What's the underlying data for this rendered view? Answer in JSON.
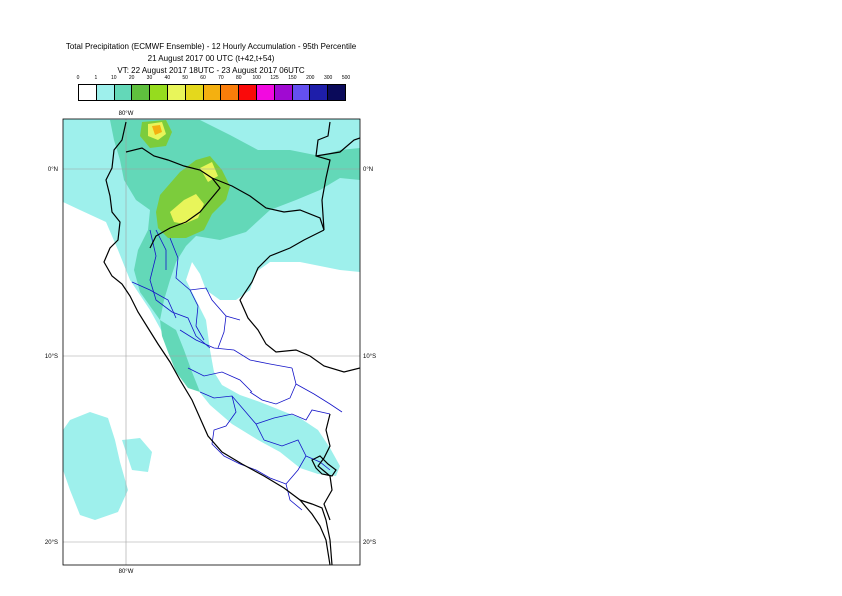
{
  "title": {
    "line1": "Total Precipitation (ECMWF Ensemble) - 12 Hourly Accumulation - 95th Percentile",
    "line2": "21 August 2017 00 UTC (t+42,t+54)",
    "line3": "VT: 22 August 2017 18UTC - 23 August 2017 06UTC"
  },
  "legend": {
    "labels": [
      "0",
      "1",
      "10",
      "20",
      "30",
      "40",
      "50",
      "60",
      "70",
      "80",
      "100",
      "125",
      "150",
      "200",
      "300",
      "500"
    ],
    "colors": [
      "#ffffff",
      "#9ef0ec",
      "#63d8b8",
      "#5fc03e",
      "#96dc1e",
      "#e8f55a",
      "#e4d81c",
      "#f4b010",
      "#fa7d0a",
      "#fa0a0a",
      "#f20ae0",
      "#a00ad2",
      "#6450f0",
      "#1e1eaa",
      "#0a0a5a"
    ]
  },
  "axes": {
    "top_lon_label": "80°W",
    "bottom_lon_label": "80°W",
    "lat_labels": [
      "0°N",
      "10°S",
      "20°S"
    ]
  },
  "colors": {
    "light_precip": "#9ef0ec",
    "medium_precip": "#63d8b8",
    "green_precip": "#7ccc3c",
    "yellow_precip": "#e8f55a",
    "orange_precip": "#f4b010",
    "country_border": "#000000",
    "region_border": "#1414c8",
    "grid": "#a0a0a0"
  }
}
